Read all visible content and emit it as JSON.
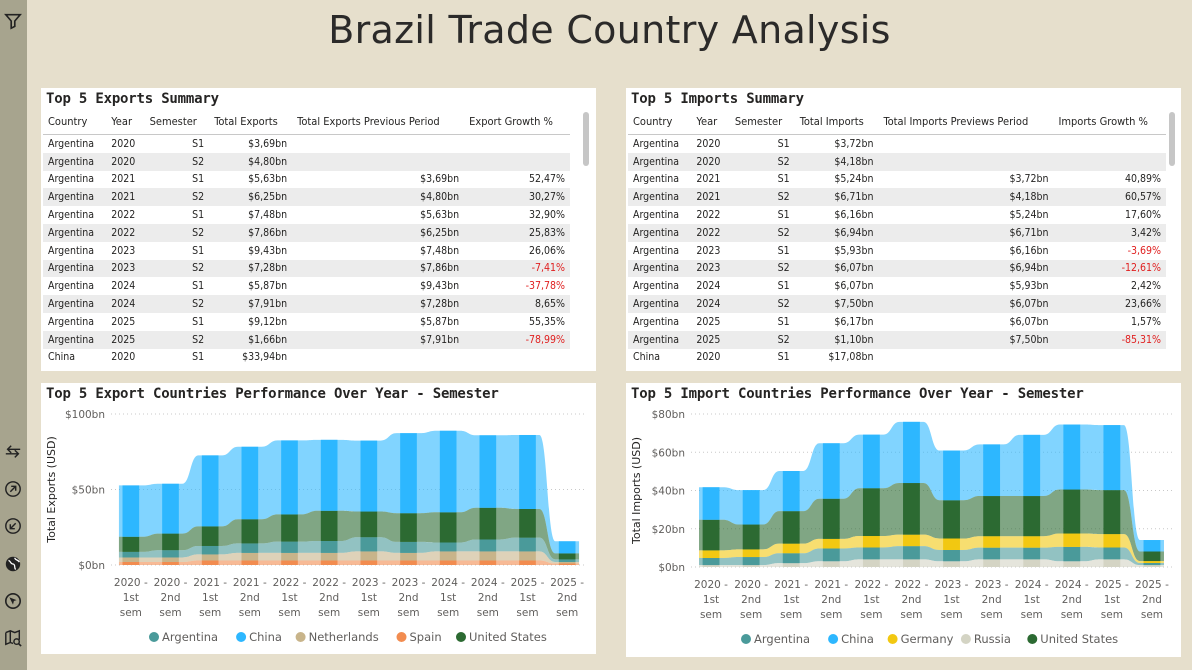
{
  "report": {
    "title": "Brazil Trade Country Analysis"
  },
  "colors": {
    "argentina": "#4a9a9a",
    "china": "#2db7ff",
    "netherlands": "#c8b48a",
    "spain": "#f28c50",
    "united_states": "#2c6a32",
    "germany": "#f2c811",
    "russia": "#d4d4c4",
    "negative": "#e02020"
  },
  "sidebar": {
    "icons": [
      "filter-icon",
      "expand-arrows-icon",
      "navigate-up-icon",
      "navigate-down-icon",
      "globe-icon",
      "explore-icon",
      "map-search-icon"
    ]
  },
  "exports_table": {
    "title": "Top 5 Exports Summary",
    "headers": [
      "Country",
      "Year",
      "Semester",
      "Total Exports",
      "Total Exports Previous Period",
      "Export Growth %"
    ],
    "rows": [
      [
        "Argentina",
        "2020",
        "S1",
        "$3,69bn",
        "",
        ""
      ],
      [
        "Argentina",
        "2020",
        "S2",
        "$4,80bn",
        "",
        ""
      ],
      [
        "Argentina",
        "2021",
        "S1",
        "$5,63bn",
        "$3,69bn",
        "52,47%"
      ],
      [
        "Argentina",
        "2021",
        "S2",
        "$6,25bn",
        "$4,80bn",
        "30,27%"
      ],
      [
        "Argentina",
        "2022",
        "S1",
        "$7,48bn",
        "$5,63bn",
        "32,90%"
      ],
      [
        "Argentina",
        "2022",
        "S2",
        "$7,86bn",
        "$6,25bn",
        "25,83%"
      ],
      [
        "Argentina",
        "2023",
        "S1",
        "$9,43bn",
        "$7,48bn",
        "26,06%"
      ],
      [
        "Argentina",
        "2023",
        "S2",
        "$7,28bn",
        "$7,86bn",
        "-7,41%"
      ],
      [
        "Argentina",
        "2024",
        "S1",
        "$5,87bn",
        "$9,43bn",
        "-37,78%"
      ],
      [
        "Argentina",
        "2024",
        "S2",
        "$7,91bn",
        "$7,28bn",
        "8,65%"
      ],
      [
        "Argentina",
        "2025",
        "S1",
        "$9,12bn",
        "$5,87bn",
        "55,35%"
      ],
      [
        "Argentina",
        "2025",
        "S2",
        "$1,66bn",
        "$7,91bn",
        "-78,99%"
      ],
      [
        "China",
        "2020",
        "S1",
        "$33,94bn",
        "",
        ""
      ]
    ]
  },
  "imports_table": {
    "title": "Top 5 Imports Summary",
    "headers": [
      "Country",
      "Year",
      "Semester",
      "Total Imports",
      "Total Imports Previews Period",
      "Imports Growth %"
    ],
    "rows": [
      [
        "Argentina",
        "2020",
        "S1",
        "$3,72bn",
        "",
        ""
      ],
      [
        "Argentina",
        "2020",
        "S2",
        "$4,18bn",
        "",
        ""
      ],
      [
        "Argentina",
        "2021",
        "S1",
        "$5,24bn",
        "$3,72bn",
        "40,89%"
      ],
      [
        "Argentina",
        "2021",
        "S2",
        "$6,71bn",
        "$4,18bn",
        "60,57%"
      ],
      [
        "Argentina",
        "2022",
        "S1",
        "$6,16bn",
        "$5,24bn",
        "17,60%"
      ],
      [
        "Argentina",
        "2022",
        "S2",
        "$6,94bn",
        "$6,71bn",
        "3,42%"
      ],
      [
        "Argentina",
        "2023",
        "S1",
        "$5,93bn",
        "$6,16bn",
        "-3,69%"
      ],
      [
        "Argentina",
        "2023",
        "S2",
        "$6,07bn",
        "$6,94bn",
        "-12,61%"
      ],
      [
        "Argentina",
        "2024",
        "S1",
        "$6,07bn",
        "$5,93bn",
        "2,42%"
      ],
      [
        "Argentina",
        "2024",
        "S2",
        "$7,50bn",
        "$6,07bn",
        "23,66%"
      ],
      [
        "Argentina",
        "2025",
        "S1",
        "$6,17bn",
        "$6,07bn",
        "1,57%"
      ],
      [
        "Argentina",
        "2025",
        "S2",
        "$1,10bn",
        "$7,50bn",
        "-85,31%"
      ],
      [
        "China",
        "2020",
        "S1",
        "$17,08bn",
        "",
        ""
      ]
    ]
  },
  "chart_data": [
    {
      "type": "area",
      "stacked": true,
      "title": "Top 5 Export Countries Performance Over Year - Semester",
      "ylabel": "Total Exports (USD)",
      "ylim": [
        0,
        100
      ],
      "yticks": [
        "$0bn",
        "$50bn",
        "$100bn"
      ],
      "ytick_values": [
        0,
        50,
        100
      ],
      "categories": [
        [
          "2020 -",
          "1st",
          "sem"
        ],
        [
          "2020 -",
          "2nd",
          "sem"
        ],
        [
          "2021 -",
          "1st",
          "sem"
        ],
        [
          "2021 -",
          "2nd",
          "sem"
        ],
        [
          "2022 -",
          "1st",
          "sem"
        ],
        [
          "2022 -",
          "2nd",
          "sem"
        ],
        [
          "2023 -",
          "1st",
          "sem"
        ],
        [
          "2023 -",
          "2nd",
          "sem"
        ],
        [
          "2024 -",
          "1st",
          "sem"
        ],
        [
          "2024 -",
          "2nd",
          "sem"
        ],
        [
          "2025 -",
          "1st",
          "sem"
        ],
        [
          "2025 -",
          "2nd",
          "sem"
        ]
      ],
      "legend_position": "bottom",
      "series": [
        {
          "name": "Spain",
          "key": "spain",
          "values": [
            2,
            2,
            3,
            3,
            3,
            3,
            3,
            3,
            3,
            3,
            3,
            1
          ]
        },
        {
          "name": "Netherlands",
          "key": "netherlands",
          "values": [
            3,
            3,
            4,
            5,
            5,
            5,
            6,
            5,
            6,
            6,
            6,
            1
          ]
        },
        {
          "name": "Argentina",
          "key": "argentina",
          "values": [
            3.7,
            4.8,
            5.6,
            6.3,
            7.5,
            7.9,
            9.4,
            7.3,
            5.9,
            7.9,
            9.1,
            1.7
          ]
        },
        {
          "name": "United States",
          "key": "united_states",
          "values": [
            10,
            11,
            13,
            16,
            18,
            20,
            17,
            19,
            20,
            21,
            19,
            4
          ]
        },
        {
          "name": "China",
          "key": "china",
          "values": [
            34,
            33,
            47,
            48,
            49,
            47,
            47,
            53,
            54,
            48,
            49,
            8
          ]
        }
      ]
    },
    {
      "type": "area",
      "stacked": true,
      "title": "Top 5 Import Countries Performance Over Year - Semester",
      "ylabel": "Total Imports (USD)",
      "ylim": [
        0,
        80
      ],
      "yticks": [
        "$0bn",
        "$20bn",
        "$40bn",
        "$60bn",
        "$80bn"
      ],
      "ytick_values": [
        0,
        20,
        40,
        60,
        80
      ],
      "categories": [
        [
          "2020 -",
          "1st",
          "sem"
        ],
        [
          "2020 -",
          "2nd",
          "sem"
        ],
        [
          "2021 -",
          "1st",
          "sem"
        ],
        [
          "2021 -",
          "2nd",
          "sem"
        ],
        [
          "2022 -",
          "1st",
          "sem"
        ],
        [
          "2022 -",
          "2nd",
          "sem"
        ],
        [
          "2023 -",
          "1st",
          "sem"
        ],
        [
          "2023 -",
          "2nd",
          "sem"
        ],
        [
          "2024 -",
          "1st",
          "sem"
        ],
        [
          "2024 -",
          "2nd",
          "sem"
        ],
        [
          "2025 -",
          "1st",
          "sem"
        ],
        [
          "2025 -",
          "2nd",
          "sem"
        ]
      ],
      "legend_position": "bottom",
      "series": [
        {
          "name": "Russia",
          "key": "russia",
          "values": [
            1,
            1,
            2,
            3,
            4,
            4,
            3,
            4,
            4,
            3,
            4,
            1
          ]
        },
        {
          "name": "Argentina",
          "key": "argentina",
          "values": [
            3.7,
            4.2,
            5.2,
            6.7,
            6.2,
            6.9,
            5.9,
            6.1,
            6.1,
            7.5,
            6.2,
            1.1
          ]
        },
        {
          "name": "Germany",
          "key": "germany",
          "values": [
            4,
            4,
            5,
            5,
            6,
            6,
            6,
            6,
            6,
            7,
            7,
            1
          ]
        },
        {
          "name": "United States",
          "key": "united_states",
          "values": [
            16,
            13,
            17,
            21,
            25,
            27,
            20,
            21,
            21,
            23,
            23,
            5
          ]
        },
        {
          "name": "China",
          "key": "china",
          "values": [
            17,
            18,
            21,
            29,
            28,
            32,
            26,
            27,
            32,
            34,
            34,
            6
          ]
        }
      ]
    }
  ]
}
